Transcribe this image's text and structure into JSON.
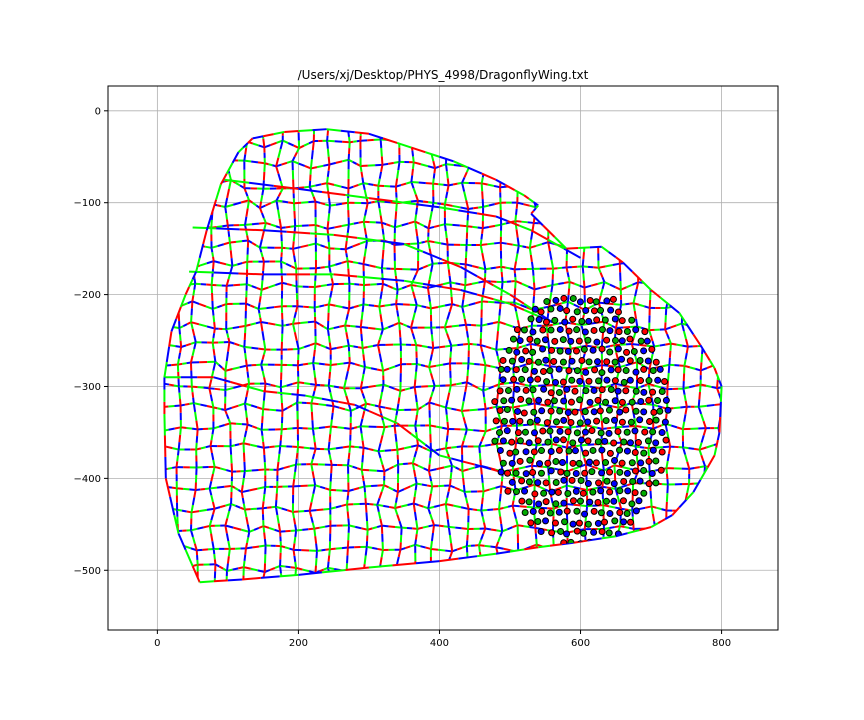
{
  "chart_data": {
    "type": "line",
    "title": "/Users/xj/Desktop/PHYS_4998/DragonflyWing.txt",
    "xlabel": "",
    "ylabel": "",
    "xlim": [
      -70,
      880
    ],
    "ylim": [
      -565,
      27
    ],
    "xticks": [
      0,
      200,
      400,
      600,
      800
    ],
    "yticks": [
      0,
      -100,
      -200,
      -300,
      -400,
      -500
    ],
    "xtick_labels": [
      "0",
      "200",
      "400",
      "600",
      "800"
    ],
    "ytick_labels": [
      "0",
      "−100",
      "−200",
      "−300",
      "−400",
      "−500"
    ],
    "grid": true,
    "series_colors": [
      "#ff0000",
      "#00ff00",
      "#0000ff"
    ],
    "marker_colors": [
      "#ff0000",
      "#00aa00",
      "#0000ff"
    ],
    "outline": [
      [
        60,
        -513
      ],
      [
        30,
        -460
      ],
      [
        12,
        -400
      ],
      [
        10,
        -330
      ],
      [
        10,
        -290
      ],
      [
        20,
        -240
      ],
      [
        40,
        -200
      ],
      [
        55,
        -175
      ],
      [
        70,
        -130
      ],
      [
        90,
        -80
      ],
      [
        115,
        -45
      ],
      [
        135,
        -30
      ],
      [
        180,
        -23
      ],
      [
        240,
        -20
      ],
      [
        300,
        -25
      ],
      [
        360,
        -40
      ],
      [
        420,
        -55
      ],
      [
        480,
        -75
      ],
      [
        520,
        -92
      ],
      [
        540,
        -103
      ],
      [
        530,
        -112
      ],
      [
        580,
        -150
      ],
      [
        630,
        -148
      ],
      [
        660,
        -165
      ],
      [
        700,
        -195
      ],
      [
        740,
        -220
      ],
      [
        770,
        -255
      ],
      [
        790,
        -280
      ],
      [
        800,
        -300
      ],
      [
        797,
        -350
      ],
      [
        790,
        -375
      ],
      [
        760,
        -415
      ],
      [
        730,
        -440
      ],
      [
        700,
        -453
      ],
      [
        650,
        -463
      ],
      [
        590,
        -470
      ],
      [
        540,
        -475
      ],
      [
        480,
        -482
      ],
      [
        400,
        -490
      ],
      [
        300,
        -497
      ],
      [
        200,
        -505
      ],
      [
        120,
        -510
      ],
      [
        60,
        -513
      ]
    ],
    "spine_lines": [
      [
        [
          95,
          -75
        ],
        [
          200,
          -85
        ],
        [
          300,
          -95
        ],
        [
          400,
          -105
        ],
        [
          480,
          -115
        ],
        [
          530,
          -130
        ],
        [
          600,
          -160
        ]
      ],
      [
        [
          50,
          -127
        ],
        [
          150,
          -130
        ],
        [
          250,
          -135
        ],
        [
          350,
          -145
        ],
        [
          430,
          -170
        ],
        [
          500,
          -200
        ],
        [
          560,
          -230
        ]
      ],
      [
        [
          45,
          -175
        ],
        [
          150,
          -178
        ],
        [
          250,
          -178
        ],
        [
          350,
          -185
        ],
        [
          430,
          -195
        ],
        [
          500,
          -210
        ],
        [
          560,
          -230
        ]
      ],
      [
        [
          10,
          -290
        ],
        [
          80,
          -290
        ],
        [
          150,
          -305
        ],
        [
          210,
          -310
        ],
        [
          280,
          -320
        ],
        [
          340,
          -340
        ],
        [
          400,
          -375
        ],
        [
          450,
          -385
        ],
        [
          520,
          -400
        ]
      ]
    ],
    "dense_region": {
      "x_range": [
        480,
        720
      ],
      "y_range": [
        -470,
        -200
      ]
    }
  }
}
